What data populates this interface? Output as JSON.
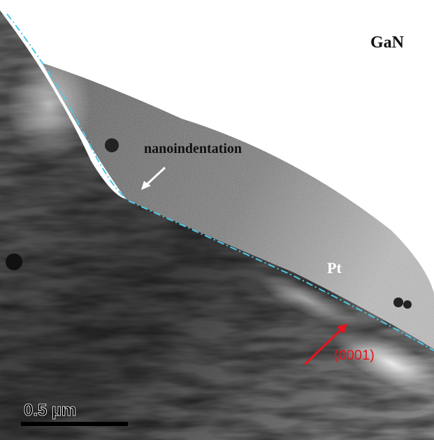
{
  "labels": {
    "material": "GaN",
    "feature": "nanoindentation",
    "coating": "Pt",
    "direction": "(0001)"
  },
  "scale_bar": {
    "label": "0.5 µm"
  }
}
